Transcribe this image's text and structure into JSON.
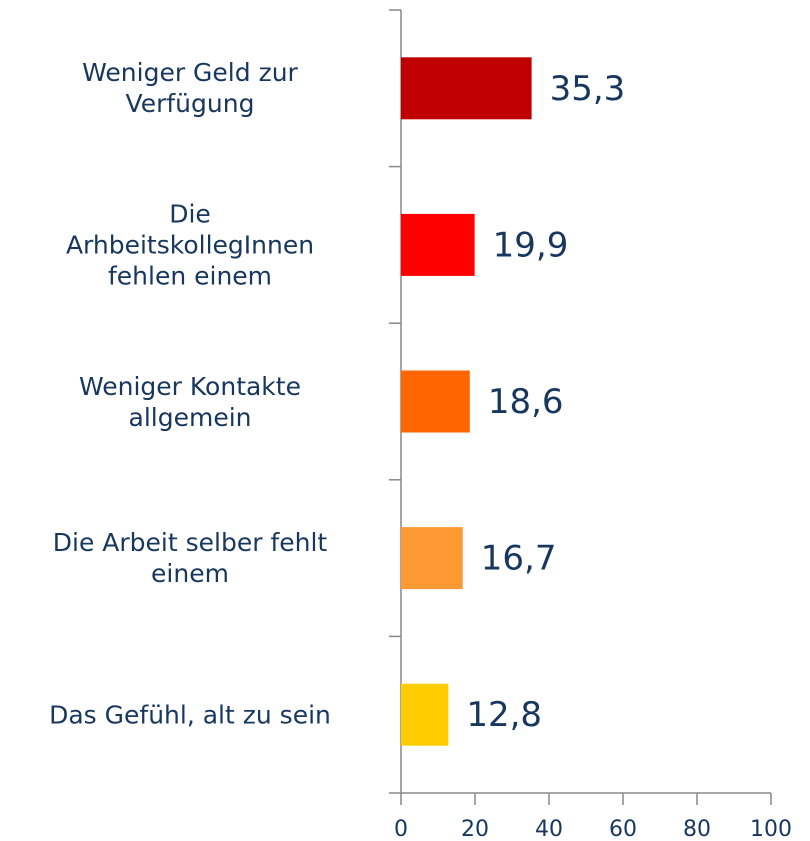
{
  "chart_data": {
    "type": "bar",
    "orientation": "horizontal",
    "categories": [
      "Weniger Geld zur\nVerfügung",
      "Die\nArhbeitskollegInnen\nfehlen einem",
      "Weniger Kontakte\nallgemein",
      "Die Arbeit selber fehlt\neinem",
      "Das Gefühl, alt zu sein"
    ],
    "values": [
      35.3,
      19.9,
      18.6,
      16.7,
      12.8
    ],
    "value_labels": [
      "35,3",
      "19,9",
      "18,6",
      "16,7",
      "12,8"
    ],
    "colors": [
      "#c00000",
      "#ff0000",
      "#ff6600",
      "#ff9933",
      "#ffcc00"
    ],
    "xlim": [
      0,
      100
    ],
    "xticks": [
      0,
      20,
      40,
      60,
      80,
      100
    ],
    "grid": false
  }
}
